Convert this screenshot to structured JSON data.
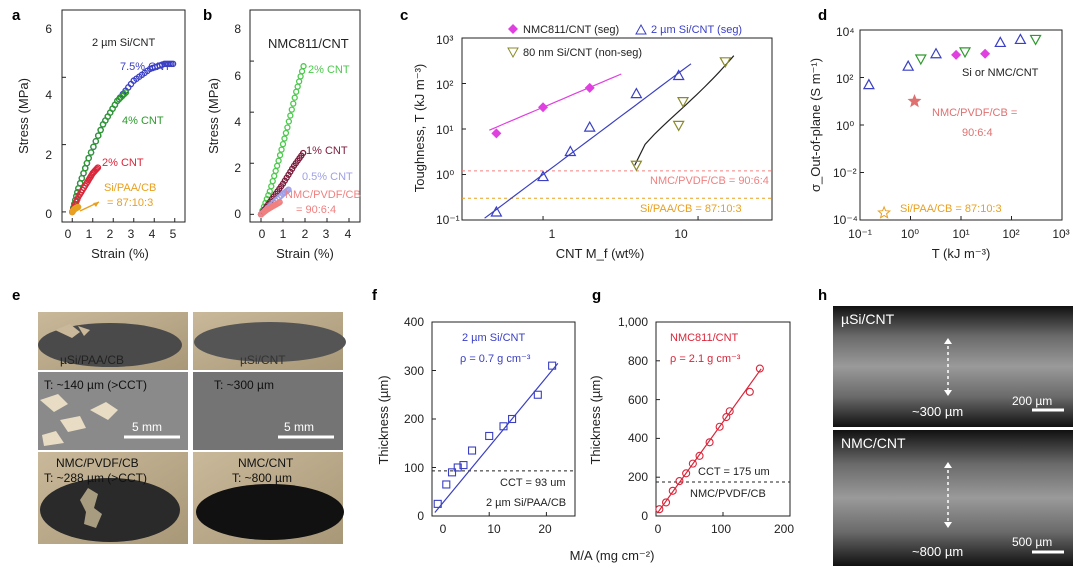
{
  "colors": {
    "blue": "#3a3fc4",
    "green": "#2d9a2d",
    "red": "#d9263a",
    "orange": "#e8a020",
    "bright_green": "#4cc94c",
    "dark_red": "#7a1a3a",
    "purple": "#6a1a7a",
    "lavender": "#a0a0e8",
    "pink": "#f08080",
    "magenta": "#e040e0",
    "olive": "#8a8a2a"
  },
  "panel_letters": [
    "a",
    "b",
    "c",
    "d",
    "e",
    "f",
    "g",
    "h"
  ],
  "chart_data": [
    {
      "panel": "a",
      "type": "line",
      "title": "2 µm Si/CNT",
      "xlabel": "Strain (%)",
      "ylabel": "Stress (MPa)",
      "xlim": [
        -0.5,
        5.5
      ],
      "ylim": [
        -0.3,
        6
      ],
      "xticks": [
        "0",
        "1",
        "2",
        "3",
        "4",
        "5"
      ],
      "yticks": [
        "0",
        "2",
        "4",
        "6"
      ],
      "series": [
        {
          "name": "7.5% CNT",
          "color": "#3a3fc4",
          "x": [
            0,
            0.3,
            0.8,
            1.5,
            2.2,
            3.0,
            3.8,
            4.5,
            5.0
          ],
          "y": [
            0,
            0.7,
            1.6,
            2.6,
            3.3,
            3.9,
            4.25,
            4.4,
            4.4
          ]
        },
        {
          "name": "4% CNT",
          "color": "#2d9a2d",
          "x": [
            0,
            0.3,
            0.8,
            1.5,
            2.2,
            2.7
          ],
          "y": [
            0,
            0.7,
            1.6,
            2.6,
            3.3,
            3.6
          ]
        },
        {
          "name": "2% CNT",
          "color": "#d9263a",
          "x": [
            0,
            0.3,
            0.7,
            1.0,
            1.3
          ],
          "y": [
            0,
            0.45,
            0.85,
            1.15,
            1.35
          ]
        },
        {
          "name": "Si/PAA/CB = 87:10:3",
          "color": "#e8a020",
          "x": [
            0,
            0.1,
            0.2,
            0.3
          ],
          "y": [
            0,
            0.08,
            0.12,
            0.15
          ]
        }
      ],
      "annotations": [
        "7.5% CNT",
        "4% CNT",
        "2% CNT",
        "Si/PAA/CB",
        "= 87:10:3"
      ]
    },
    {
      "panel": "b",
      "type": "line",
      "title": "NMC811/CNT",
      "xlabel": "Strain (%)",
      "ylabel": "Stress (MPa)",
      "xlim": [
        -0.5,
        4.5
      ],
      "ylim": [
        -0.3,
        8
      ],
      "xticks": [
        "0",
        "1",
        "2",
        "3",
        "4"
      ],
      "yticks": [
        "0",
        "2",
        "4",
        "6",
        "8"
      ],
      "series": [
        {
          "name": "2% CNT",
          "color": "#4cc94c",
          "x": [
            0,
            0.4,
            0.8,
            1.2,
            1.6,
            2.0
          ],
          "y": [
            0,
            0.9,
            2.1,
            3.4,
            4.8,
            6.0
          ]
        },
        {
          "name": "1% CNT",
          "color": "#7a1a3a",
          "x": [
            0,
            0.5,
            1.0,
            1.5,
            2.0
          ],
          "y": [
            0,
            0.6,
            1.2,
            1.9,
            2.5
          ]
        },
        {
          "name": "0.5% CNT",
          "color": "#a0a0e8",
          "x": [
            0,
            0.5,
            1.0,
            1.3
          ],
          "y": [
            0,
            0.4,
            0.8,
            1.0
          ]
        },
        {
          "name": "NMC/PVDF/CB = 90:6:4",
          "color": "#f08080",
          "x": [
            0,
            0.3,
            0.6,
            0.9
          ],
          "y": [
            0,
            0.2,
            0.35,
            0.5
          ]
        }
      ],
      "annotations": [
        "2% CNT",
        "1% CNT",
        "0.5% CNT",
        "NMC/PVDF/CB",
        "= 90:6:4"
      ]
    },
    {
      "panel": "c",
      "type": "scatter",
      "xscale": "log",
      "yscale": "log",
      "xlabel": "CNT M_f (wt%)",
      "ylabel": "Toughness, T (kJ m⁻³)",
      "xlim": [
        0.3,
        30
      ],
      "ylim": [
        0.1,
        1000
      ],
      "xtick_labels": [
        "1",
        "10"
      ],
      "ytick_labels": [
        "10⁻¹",
        "10⁰",
        "10¹",
        "10²",
        "10³"
      ],
      "series": [
        {
          "name": "NMC811/CNT (seg)",
          "color": "#e040e0",
          "marker": "diamond",
          "x": [
            0.5,
            1.0,
            2.0
          ],
          "y": [
            8,
            30,
            80
          ]
        },
        {
          "name": "2 µm Si/CNT (seg)",
          "color": "#3a3fc4",
          "marker": "triangle",
          "x": [
            0.5,
            1.0,
            1.5,
            2.0,
            4.0,
            7.5
          ],
          "y": [
            0.15,
            0.9,
            3.2,
            11,
            60,
            150
          ]
        },
        {
          "name": "80 nm Si/CNT (non-seg)",
          "color": "#8a8a2a",
          "marker": "triangle-down",
          "x": [
            4.0,
            7.5,
            8.0,
            15.0
          ],
          "y": [
            1.6,
            12,
            40,
            300
          ]
        }
      ],
      "reference_lines": [
        {
          "label": "NMC/PVDF/CB = 90:6:4",
          "y": 1.2,
          "color": "#f08080"
        },
        {
          "label": "Si/PAA/CB = 87:10:3",
          "y": 0.3,
          "color": "#e8a020"
        }
      ]
    },
    {
      "panel": "d",
      "type": "scatter",
      "xscale": "log",
      "yscale": "log",
      "xlabel": "T (kJ m⁻³)",
      "ylabel": "σ_Out-of-plane (S m⁻¹)",
      "xlim": [
        0.1,
        1000
      ],
      "ylim": [
        0.0001,
        10000
      ],
      "xtick_labels": [
        "10⁻¹",
        "10⁰",
        "10¹",
        "10²",
        "10³"
      ],
      "ytick_labels": [
        "10⁻⁴",
        "10⁻²",
        "10⁰",
        "10²",
        "10⁴"
      ],
      "series": [
        {
          "name": "Si or NMC/CNT",
          "color": "#3a3fc4",
          "marker": "triangle",
          "x": [
            0.15,
            0.9,
            3.2,
            60,
            150
          ],
          "y": [
            50,
            300,
            1000,
            3000,
            4000
          ]
        },
        {
          "name": "80 nm Si/CNT",
          "color": "#2d9a2d",
          "marker": "triangle-down",
          "x": [
            1.6,
            12,
            300
          ],
          "y": [
            600,
            1200,
            4000
          ]
        },
        {
          "name": "NMC811/CNT",
          "color": "#e040e0",
          "marker": "diamond",
          "x": [
            8,
            30
          ],
          "y": [
            900,
            1000
          ]
        },
        {
          "name": "NMC/PVDF/CB = 90:6:4",
          "color": "#e07070",
          "marker": "star",
          "x": [
            1.2
          ],
          "y": [
            10
          ]
        },
        {
          "name": "Si/PAA/CB = 87:10:3",
          "color": "#e8a020",
          "marker": "star-open",
          "x": [
            0.3
          ],
          "y": [
            0.0002
          ]
        }
      ],
      "annotations": [
        "Si or NMC/CNT",
        "NMC/PVDF/CB =",
        "90:6:4",
        "Si/PAA/CB = 87:10:3"
      ]
    },
    {
      "panel": "f",
      "type": "scatter",
      "xlabel": "M/A (mg cm⁻²)",
      "ylabel": "Thickness (µm)",
      "xlim": [
        0,
        25
      ],
      "ylim": [
        0,
        400
      ],
      "xticks": [
        "0",
        "10",
        "20"
      ],
      "yticks": [
        "0",
        "100",
        "200",
        "300",
        "400"
      ],
      "series": [
        {
          "name": "2 µm Si/CNT",
          "color": "#3a3fc4",
          "marker": "square-open",
          "x": [
            1.0,
            2.5,
            3.5,
            4.5,
            5.5,
            7.0,
            10.0,
            12.5,
            14.0,
            18.5,
            21.0
          ],
          "y": [
            25,
            65,
            90,
            100,
            105,
            135,
            165,
            185,
            200,
            250,
            310
          ]
        }
      ],
      "fit": {
        "slope": 14.3,
        "intercept": 0
      },
      "density_label": "ρ = 0.7 g cm⁻³",
      "reference_line": {
        "label": "CCT = 93 um",
        "y": 93
      },
      "reference_note": "2 µm Si/PAA/CB"
    },
    {
      "panel": "g",
      "type": "scatter",
      "xlabel": "M/A (mg cm⁻²)",
      "ylabel": "Thickness (µm)",
      "xlim": [
        0,
        200
      ],
      "ylim": [
        0,
        1000
      ],
      "xticks": [
        "0",
        "100",
        "200"
      ],
      "yticks": [
        "0",
        "200",
        "400",
        "600",
        "800",
        "1,000"
      ],
      "series": [
        {
          "name": "NMC811/CNT",
          "color": "#d9263a",
          "marker": "circle-open",
          "x": [
            5,
            15,
            25,
            35,
            45,
            55,
            65,
            80,
            95,
            105,
            110,
            140,
            155
          ],
          "y": [
            35,
            70,
            130,
            180,
            220,
            270,
            310,
            380,
            460,
            510,
            540,
            640,
            760
          ]
        }
      ],
      "fit": {
        "slope": 4.8,
        "intercept": 5
      },
      "density_label": "ρ = 2.1 g cm⁻³",
      "reference_line": {
        "label": "CCT = 175 um",
        "y": 175
      },
      "reference_note": "NMC/PVDF/CB"
    }
  ],
  "panel_e": {
    "photos": [
      {
        "label": "µSi/PAA/CB"
      },
      {
        "label": "µSi/CNT"
      },
      {
        "label": "T: ~140 µm (>CCT)",
        "scale": "5 mm"
      },
      {
        "label": "T: ~300 µm",
        "scale": "5 mm"
      },
      {
        "label": "NMC/PVDF/CB",
        "label2": "T: ~288 µm (>CCT)"
      },
      {
        "label": "NMC/CNT",
        "label2": "T: ~800 µm"
      }
    ]
  },
  "panel_h": {
    "images": [
      {
        "label": "µSi/CNT",
        "thickness": "~300 µm",
        "scale": "200 µm"
      },
      {
        "label": "NMC/CNT",
        "thickness": "~800 µm",
        "scale": "500 µm"
      }
    ]
  }
}
